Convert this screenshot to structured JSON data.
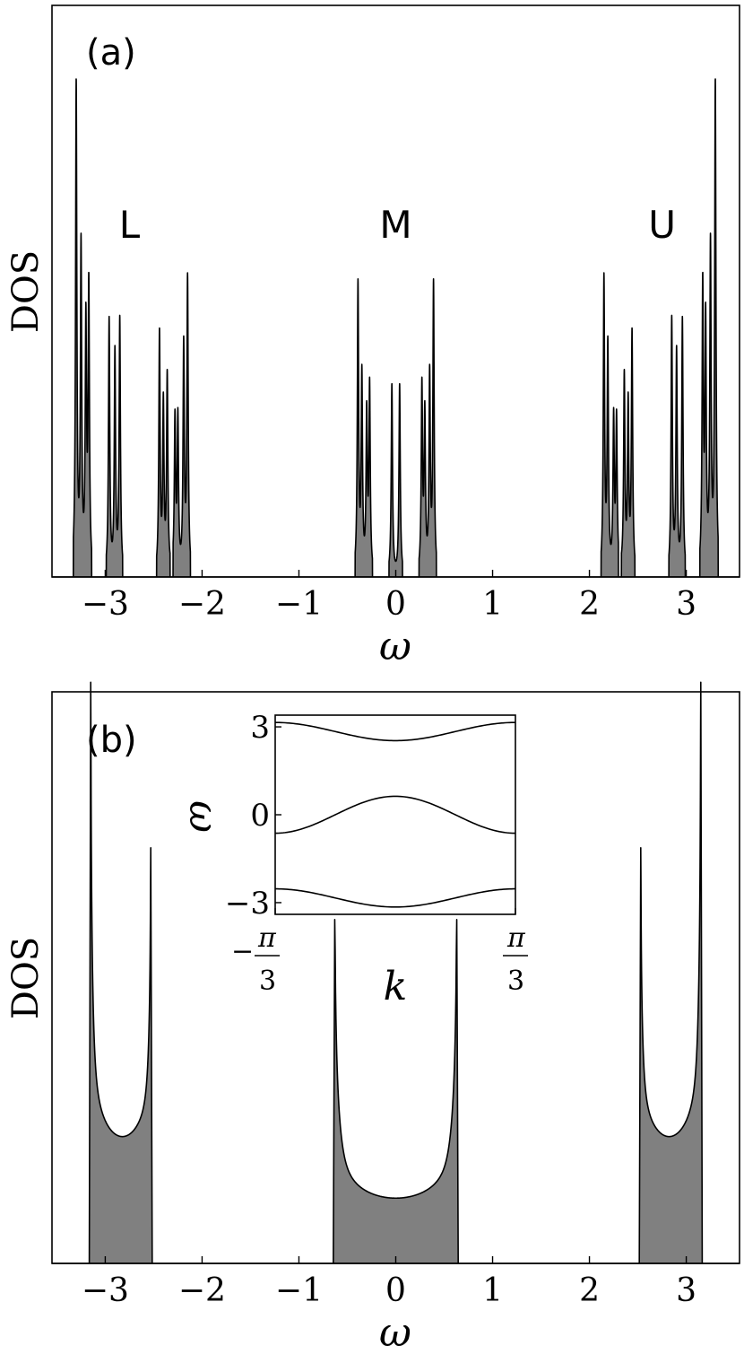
{
  "chart_data": [
    {
      "type": "area",
      "panel_label": "(a)",
      "xlabel": "ω",
      "ylabel": "DOS",
      "xlim": [
        -3.55,
        3.55
      ],
      "ylim": [
        0,
        1.17
      ],
      "xticks": [
        -3,
        -2,
        -1,
        0,
        1,
        2,
        3
      ],
      "xtick_labels": [
        "−3",
        "−2",
        "−1",
        "0",
        "1",
        "2",
        "3"
      ],
      "yticks": [],
      "fill_color": "#808080",
      "line_color": "#000000",
      "band_labels": [
        {
          "text": "L",
          "x": -2.75
        },
        {
          "text": "M",
          "x": 0.0
        },
        {
          "text": "U",
          "x": 2.75
        }
      ],
      "peaks": [
        {
          "x": -3.3,
          "y": 1.0
        },
        {
          "x": -3.25,
          "y": 0.66
        },
        {
          "x": -3.2,
          "y": 0.5
        },
        {
          "x": -3.17,
          "y": 0.58
        },
        {
          "x": -2.96,
          "y": 0.52
        },
        {
          "x": -2.9,
          "y": 0.45
        },
        {
          "x": -2.85,
          "y": 0.52
        },
        {
          "x": -2.44,
          "y": 0.49
        },
        {
          "x": -2.4,
          "y": 0.34
        },
        {
          "x": -2.36,
          "y": 0.4
        },
        {
          "x": -2.28,
          "y": 0.31
        },
        {
          "x": -2.25,
          "y": 0.31
        },
        {
          "x": -2.19,
          "y": 0.46
        },
        {
          "x": -2.15,
          "y": 0.6
        },
        {
          "x": -0.39,
          "y": 0.59
        },
        {
          "x": -0.35,
          "y": 0.4
        },
        {
          "x": -0.3,
          "y": 0.32
        },
        {
          "x": -0.27,
          "y": 0.38
        },
        {
          "x": -0.04,
          "y": 0.39
        },
        {
          "x": 0.04,
          "y": 0.39
        },
        {
          "x": 0.27,
          "y": 0.38
        },
        {
          "x": 0.3,
          "y": 0.32
        },
        {
          "x": 0.35,
          "y": 0.4
        },
        {
          "x": 0.39,
          "y": 0.59
        },
        {
          "x": 2.15,
          "y": 0.6
        },
        {
          "x": 2.19,
          "y": 0.46
        },
        {
          "x": 2.25,
          "y": 0.31
        },
        {
          "x": 2.28,
          "y": 0.31
        },
        {
          "x": 2.36,
          "y": 0.4
        },
        {
          "x": 2.4,
          "y": 0.34
        },
        {
          "x": 2.44,
          "y": 0.49
        },
        {
          "x": 2.85,
          "y": 0.52
        },
        {
          "x": 2.9,
          "y": 0.45
        },
        {
          "x": 2.96,
          "y": 0.52
        },
        {
          "x": 3.17,
          "y": 0.58
        },
        {
          "x": 3.2,
          "y": 0.5
        },
        {
          "x": 3.25,
          "y": 0.66
        },
        {
          "x": 3.3,
          "y": 1.0
        }
      ],
      "bands": [
        [
          -3.33,
          -3.14
        ],
        [
          -2.99,
          -2.82
        ],
        [
          -2.47,
          -2.33
        ],
        [
          -2.3,
          -2.12
        ],
        [
          -0.42,
          -0.24
        ],
        [
          -0.07,
          0.07
        ],
        [
          0.24,
          0.42
        ],
        [
          2.12,
          2.3
        ],
        [
          2.33,
          2.47
        ],
        [
          2.82,
          2.99
        ],
        [
          3.14,
          3.33
        ]
      ]
    },
    {
      "type": "area",
      "panel_label": "(b)",
      "xlabel": "ω",
      "ylabel": "DOS",
      "xlim": [
        -3.55,
        3.55
      ],
      "ylim": [
        0,
        1.05
      ],
      "xticks": [
        -3,
        -2,
        -1,
        0,
        1,
        2,
        3
      ],
      "xtick_labels": [
        "−3",
        "−2",
        "−1",
        "0",
        "1",
        "2",
        "3"
      ],
      "yticks": [],
      "fill_color": "#808080",
      "line_color": "#000000",
      "bands": [
        {
          "emin": -3.15,
          "emax": -2.53,
          "edge_left": 1.0,
          "edge_right": 0.72,
          "min": 0.22
        },
        {
          "emin": -0.63,
          "emax": 0.63,
          "edge_left": 0.59,
          "edge_right": 0.59,
          "min": 0.11
        },
        {
          "emin": 2.53,
          "emax": 3.15,
          "edge_left": 0.72,
          "edge_right": 1.0,
          "min": 0.22
        }
      ],
      "inset": {
        "type": "line",
        "xlabel": "k",
        "ylabel": "ω",
        "xlim": [
          -1.0472,
          1.0472
        ],
        "ylim": [
          -3.4,
          3.4
        ],
        "yticks": [
          -3,
          0,
          3
        ],
        "ytick_labels": [
          "−3",
          "0",
          "3"
        ],
        "xticks": [
          "−π/3",
          "π/3"
        ],
        "series": [
          {
            "k": [
              -1.0472,
              0.0,
              1.0472
            ],
            "omega": [
              3.15,
              2.53,
              3.15
            ]
          },
          {
            "k": [
              -1.0472,
              0.0,
              1.0472
            ],
            "omega": [
              -0.63,
              0.63,
              -0.63
            ]
          },
          {
            "k": [
              -1.0472,
              0.0,
              1.0472
            ],
            "omega": [
              -2.53,
              -3.15,
              -2.53
            ]
          }
        ]
      }
    }
  ]
}
